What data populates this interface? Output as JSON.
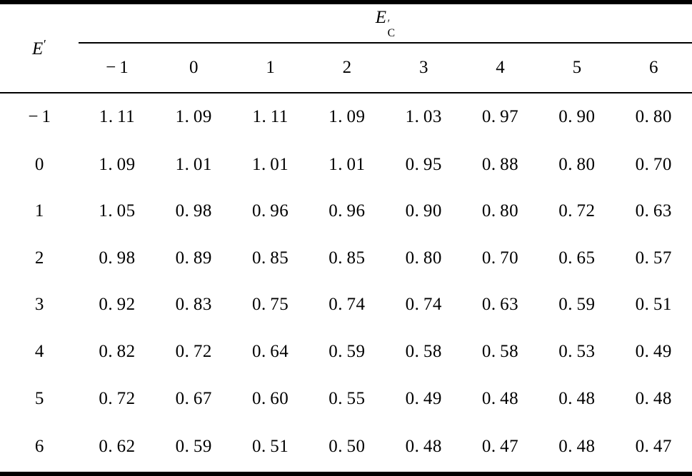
{
  "colors": {
    "background": "#ffffff",
    "text": "#000000",
    "rule": "#000000"
  },
  "table": {
    "row_var": {
      "base": "E",
      "prime": "′"
    },
    "col_var": {
      "base": "E",
      "prime": "′",
      "sub": "C"
    },
    "col_headers": [
      "−1",
      "0",
      "1",
      "2",
      "3",
      "4",
      "5",
      "6"
    ],
    "rows": [
      {
        "label": "−1",
        "values": [
          1.11,
          1.09,
          1.11,
          1.09,
          1.03,
          0.97,
          0.9,
          0.8
        ]
      },
      {
        "label": "0",
        "values": [
          1.09,
          1.01,
          1.01,
          1.01,
          0.95,
          0.88,
          0.8,
          0.7
        ]
      },
      {
        "label": "1",
        "values": [
          1.05,
          0.98,
          0.96,
          0.96,
          0.9,
          0.8,
          0.72,
          0.63
        ]
      },
      {
        "label": "2",
        "values": [
          0.98,
          0.89,
          0.85,
          0.85,
          0.8,
          0.7,
          0.65,
          0.57
        ]
      },
      {
        "label": "3",
        "values": [
          0.92,
          0.83,
          0.75,
          0.74,
          0.74,
          0.63,
          0.59,
          0.51
        ]
      },
      {
        "label": "4",
        "values": [
          0.82,
          0.72,
          0.64,
          0.59,
          0.58,
          0.58,
          0.53,
          0.49
        ]
      },
      {
        "label": "5",
        "values": [
          0.72,
          0.67,
          0.6,
          0.55,
          0.49,
          0.48,
          0.48,
          0.48
        ]
      },
      {
        "label": "6",
        "values": [
          0.62,
          0.59,
          0.51,
          0.5,
          0.48,
          0.47,
          0.48,
          0.47
        ]
      }
    ]
  }
}
